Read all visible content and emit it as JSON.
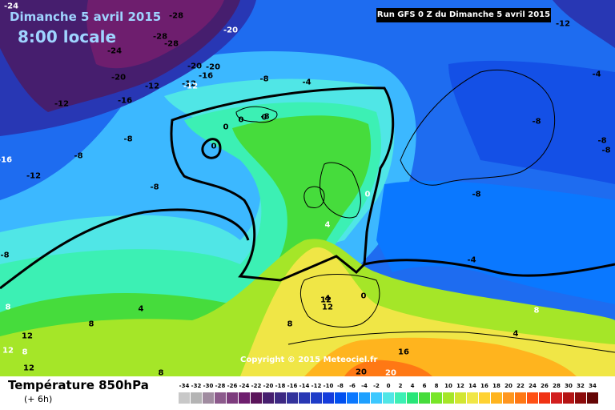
{
  "map": {
    "date": "Dimanche 5 avril 2015",
    "time": "8:00 locale",
    "run": "Run GFS 0 Z du Dimanche 5 avril 2015",
    "copyright": "Copyright © 2015 Meteociel.fr",
    "parameter": "Température 850hPa",
    "lead": "(+ 6h)"
  },
  "legend": {
    "ticks": [
      "-34",
      "-32",
      "-30",
      "-28",
      "-26",
      "-24",
      "-22",
      "-20",
      "-18",
      "-16",
      "-14",
      "-12",
      "-10",
      "-8",
      "-6",
      "-4",
      "-2",
      "0",
      "2",
      "4",
      "6",
      "8",
      "10",
      "12",
      "14",
      "16",
      "18",
      "20",
      "22",
      "24",
      "26",
      "28",
      "30",
      "32",
      "34"
    ],
    "colors": [
      "#c8c8c8",
      "#b4b4b4",
      "#a08ca0",
      "#8c5a8c",
      "#7d3c7d",
      "#6e1e6e",
      "#5a145a",
      "#461e6e",
      "#3c2882",
      "#32329b",
      "#2837b4",
      "#1e3cc8",
      "#143cdc",
      "#0050f0",
      "#0a78ff",
      "#1ea0ff",
      "#3cc8ff",
      "#50e6e6",
      "#3cf0b4",
      "#28e678",
      "#46dc3c",
      "#78e628",
      "#a5e628",
      "#d2e632",
      "#f0e646",
      "#ffd232",
      "#ffb41e",
      "#ff961e",
      "#ff7814",
      "#ff5014",
      "#f03214",
      "#d21e1e",
      "#b41414",
      "#8c0a0a",
      "#640505"
    ]
  },
  "isotherms": [
    {
      "label": "-24",
      "color": "light"
    },
    {
      "label": "-28",
      "color": "dark"
    },
    {
      "label": "-20",
      "color": "light"
    },
    {
      "label": "-28",
      "color": "dark"
    },
    {
      "label": "-28",
      "color": "dark"
    },
    {
      "label": "-24",
      "color": "dark"
    },
    {
      "label": "-20",
      "color": "dark"
    },
    {
      "label": "-20",
      "color": "dark"
    },
    {
      "label": "-12",
      "color": "dark"
    },
    {
      "label": "-16",
      "color": "dark"
    },
    {
      "label": "-12",
      "color": "dark"
    },
    {
      "label": "-20",
      "color": "dark"
    },
    {
      "label": "-16",
      "color": "dark"
    },
    {
      "label": "-12",
      "color": "dark"
    },
    {
      "label": "-8",
      "color": "dark"
    },
    {
      "label": "-4",
      "color": "dark"
    },
    {
      "label": "-8",
      "color": "dark"
    },
    {
      "label": "-8",
      "color": "dark"
    },
    {
      "label": "-12",
      "color": "dark"
    },
    {
      "label": "-16",
      "color": "light"
    },
    {
      "label": "-8",
      "color": "dark"
    },
    {
      "label": "0",
      "color": "dark"
    },
    {
      "label": "0",
      "color": "dark"
    },
    {
      "label": "0",
      "color": "dark"
    },
    {
      "label": "0",
      "color": "dark"
    },
    {
      "label": "-8",
      "color": "dark"
    },
    {
      "label": "-8",
      "color": "dark"
    },
    {
      "label": "-4",
      "color": "dark"
    },
    {
      "label": "-8",
      "color": "dark"
    },
    {
      "label": "-8",
      "color": "dark"
    },
    {
      "label": "-12",
      "color": "dark"
    },
    {
      "label": "0",
      "color": "light"
    },
    {
      "label": "4",
      "color": "light"
    },
    {
      "label": "-8",
      "color": "dark"
    },
    {
      "label": "-4",
      "color": "dark"
    },
    {
      "label": "0",
      "color": "dark"
    },
    {
      "label": "4",
      "color": "dark"
    },
    {
      "label": "12",
      "color": "dark"
    },
    {
      "label": "4",
      "color": "dark"
    },
    {
      "label": "8",
      "color": "light"
    },
    {
      "label": "8",
      "color": "dark"
    },
    {
      "label": "8",
      "color": "dark"
    },
    {
      "label": "12",
      "color": "dark"
    },
    {
      "label": "12",
      "color": "light"
    },
    {
      "label": "8",
      "color": "light"
    },
    {
      "label": "12",
      "color": "dark"
    },
    {
      "label": "8",
      "color": "dark"
    },
    {
      "label": "16",
      "color": "dark"
    },
    {
      "label": "20",
      "color": "dark"
    },
    {
      "label": "20",
      "color": "light"
    },
    {
      "label": "8",
      "color": "light"
    },
    {
      "label": "4",
      "color": "dark"
    },
    {
      "label": "12",
      "color": "dark"
    },
    {
      "label": "-12",
      "color": "light"
    },
    {
      "label": "-8",
      "color": "dark"
    }
  ]
}
